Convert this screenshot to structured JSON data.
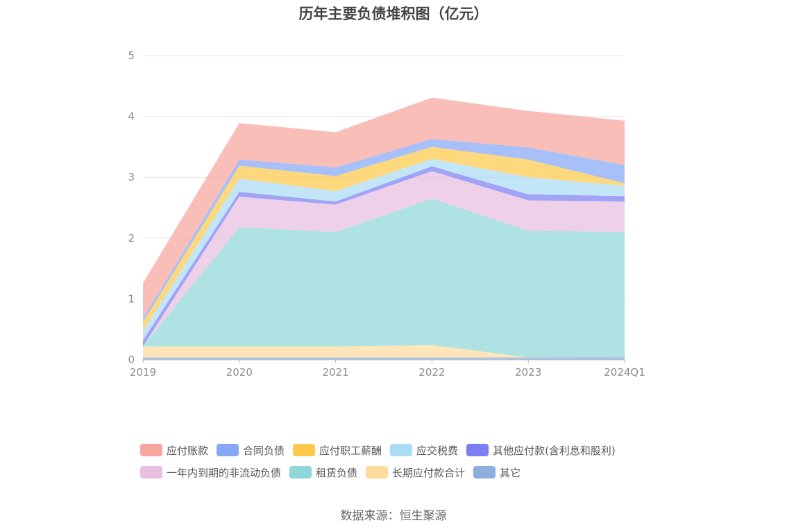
{
  "chart_data": {
    "type": "area",
    "stacked": true,
    "title": "历年主要负债堆积图（亿元）",
    "categories": [
      "2019",
      "2020",
      "2021",
      "2022",
      "2023",
      "2024Q1"
    ],
    "ylim": [
      0,
      5
    ],
    "yticks": [
      "0",
      "1",
      "2",
      "3",
      "4",
      "5"
    ],
    "grid": true,
    "legend_position": "bottom",
    "series": [
      {
        "name": "其它",
        "color": "#8eaedc",
        "values": [
          0.04,
          0.04,
          0.04,
          0.04,
          0.04,
          0.05
        ]
      },
      {
        "name": "长期应付款合计",
        "color": "#fedc9d",
        "values": [
          0.18,
          0.18,
          0.18,
          0.2,
          0.0,
          0.0
        ]
      },
      {
        "name": "租赁负债",
        "color": "#8fd7d8",
        "values": [
          0.0,
          1.96,
          1.88,
          2.41,
          2.08,
          2.05
        ]
      },
      {
        "name": "一年内到期的非流动负债",
        "color": "#e8bfdf",
        "values": [
          0.0,
          0.5,
          0.45,
          0.45,
          0.5,
          0.5
        ]
      },
      {
        "name": "其他应付款(含利息和股利)",
        "color": "#7b7ff2",
        "values": [
          0.1,
          0.08,
          0.05,
          0.08,
          0.1,
          0.09
        ]
      },
      {
        "name": "应交税费",
        "color": "#abdcf5",
        "values": [
          0.15,
          0.22,
          0.17,
          0.12,
          0.28,
          0.17
        ]
      },
      {
        "name": "应付职工薪酬",
        "color": "#fdc94a",
        "values": [
          0.15,
          0.21,
          0.25,
          0.2,
          0.29,
          0.04
        ]
      },
      {
        "name": "合同负债",
        "color": "#87a7f7",
        "values": [
          0.06,
          0.1,
          0.14,
          0.13,
          0.2,
          0.3
        ]
      },
      {
        "name": "应付账款",
        "color": "#f8a59e",
        "values": [
          0.58,
          0.6,
          0.58,
          0.68,
          0.6,
          0.73
        ]
      }
    ]
  },
  "legend_rows": [
    [
      {
        "label": "应付账款",
        "color": "#f8a59e"
      },
      {
        "label": "合同负债",
        "color": "#87a7f7"
      },
      {
        "label": "应付职工薪酬",
        "color": "#fdc94a"
      },
      {
        "label": "应交税费",
        "color": "#abdcf5"
      },
      {
        "label": "其他应付款(含利息和股利)",
        "color": "#7b7ff2"
      }
    ],
    [
      {
        "label": "一年内到期的非流动负债",
        "color": "#e8bfdf"
      },
      {
        "label": "租赁负债",
        "color": "#8fd7d8"
      },
      {
        "label": "长期应付款合计",
        "color": "#fedc9d"
      },
      {
        "label": "其它",
        "color": "#8eaedc"
      }
    ]
  ],
  "source_text": "数据来源：恒生聚源"
}
